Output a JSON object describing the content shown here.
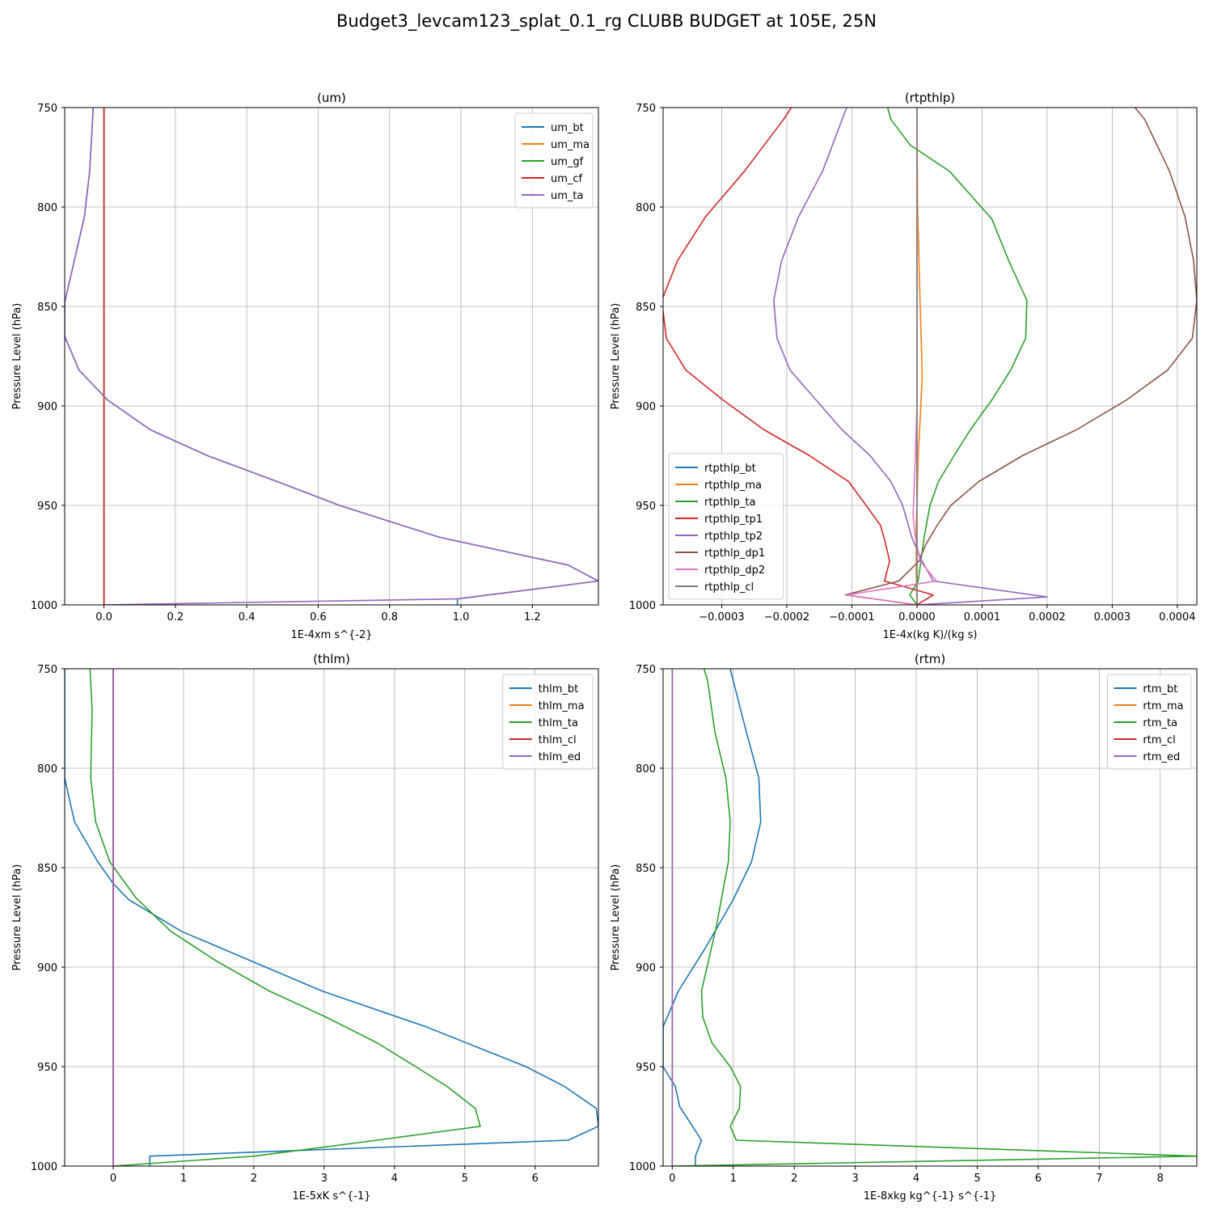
{
  "suptitle": "Budget3_levcam123_splat_0.1_rg CLUBB BUDGET at 105E, 25N",
  "chart_data": [
    {
      "type": "line",
      "title": "(um)",
      "xlabel": "1E-4xm s^{-2}",
      "ylabel": "Pressure Level (hPa)",
      "xlim": [
        -0.11,
        1.385
      ],
      "ylim": [
        1000,
        750
      ],
      "xticks": [
        0.0,
        0.2,
        0.4,
        0.6,
        0.8,
        1.0,
        1.2
      ],
      "xtick_labels": [
        "0.0",
        "0.2",
        "0.4",
        "0.6",
        "0.8",
        "1.0",
        "1.2"
      ],
      "yticks": [
        750,
        800,
        850,
        900,
        950,
        1000
      ],
      "ytick_labels": [
        "750",
        "800",
        "850",
        "900",
        "950",
        "1000"
      ],
      "legend_loc": "upper right",
      "series": [
        {
          "name": "um_bt",
          "color": "#1f77b4",
          "x": [
            -0.03,
            -0.04,
            -0.055,
            -0.11,
            -0.11,
            -0.07,
            0.01,
            0.13,
            0.29,
            0.47,
            0.66,
            0.94,
            1.3,
            1.385,
            0.99,
            0.99
          ],
          "y": [
            750,
            782,
            805,
            848,
            865,
            882,
            897,
            912,
            925,
            937,
            950,
            966,
            980,
            988,
            997,
            1000
          ]
        },
        {
          "name": "um_ma",
          "color": "#ff7f0e",
          "x": [
            0,
            0
          ],
          "y": [
            750,
            1000
          ]
        },
        {
          "name": "um_gf",
          "color": "#2ca02c",
          "x": [
            0,
            0
          ],
          "y": [
            750,
            1000
          ]
        },
        {
          "name": "um_cf",
          "color": "#d62728",
          "x": [
            0,
            0
          ],
          "y": [
            750,
            1000
          ]
        },
        {
          "name": "um_ta",
          "color": "#9467bd",
          "x": [
            -0.03,
            -0.04,
            -0.055,
            -0.11,
            -0.11,
            -0.07,
            0.01,
            0.13,
            0.29,
            0.47,
            0.66,
            0.94,
            1.3,
            1.385,
            0.99,
            0.0
          ],
          "y": [
            750,
            782,
            805,
            848,
            865,
            882,
            897,
            912,
            925,
            937,
            950,
            966,
            980,
            988,
            997,
            1000
          ]
        }
      ]
    },
    {
      "type": "line",
      "title": "(rtpthlp)",
      "xlabel": "1E-4x(kg K)/(kg s)",
      "ylabel": "Pressure Level (hPa)",
      "xlim": [
        -0.00039,
        0.00043
      ],
      "ylim": [
        1000,
        750
      ],
      "xticks": [
        -0.0003,
        -0.0002,
        -0.0001,
        0.0,
        0.0001,
        0.0002,
        0.0003,
        0.0004
      ],
      "xtick_labels": [
        "−0.0003",
        "−0.0002",
        "−0.0001",
        "0.0000",
        "0.0001",
        "0.0002",
        "0.0003",
        "0.0004"
      ],
      "yticks": [
        750,
        800,
        850,
        900,
        950,
        1000
      ],
      "ytick_labels": [
        "750",
        "800",
        "850",
        "900",
        "950",
        "1000"
      ],
      "legend_loc": "lower left",
      "series": [
        {
          "name": "rtpthlp_bt",
          "color": "#1f77b4",
          "x": [
            0.0,
            0.0
          ],
          "y": [
            750,
            1000
          ]
        },
        {
          "name": "rtpthlp_ma",
          "color": "#ff7f0e",
          "x": [
            0.0,
            1e-06,
            5e-06,
            7e-06,
            8e-06,
            6e-06,
            2e-06,
            -1e-06,
            -1e-06,
            0.0
          ],
          "y": [
            750,
            800,
            850,
            870,
            885,
            900,
            925,
            960,
            985,
            1000
          ]
        },
        {
          "name": "rtpthlp_ta",
          "color": "#2ca02c",
          "x": [
            -4.5e-05,
            -4e-05,
            -1e-05,
            5e-05,
            0.000115,
            0.000141,
            0.000169,
            0.000167,
            0.000144,
            0.000115,
            8.2e-05,
            5.7e-05,
            3.3e-05,
            2e-05,
            1.1e-05,
            6e-06,
            2e-06,
            -1.1e-05,
            0.0
          ],
          "y": [
            750,
            756,
            769,
            782,
            806,
            827,
            847,
            866,
            882,
            897,
            912,
            925,
            938,
            950,
            966,
            978,
            988,
            995,
            1000
          ]
        },
        {
          "name": "rtpthlp_tp1",
          "color": "#d62728",
          "x": [
            -0.000193,
            -0.000205,
            -0.000265,
            -0.000325,
            -0.000368,
            -0.000392,
            -0.000385,
            -0.000355,
            -0.000298,
            -0.000235,
            -0.000165,
            -0.000105,
            -7.8e-05,
            -5.6e-05,
            -5e-05,
            -4.2e-05,
            -5e-05,
            2.5e-05,
            0.0
          ],
          "y": [
            750,
            756,
            782,
            805,
            827,
            847,
            866,
            882,
            897,
            912,
            925,
            938,
            950,
            960,
            967,
            978,
            988,
            995,
            1000
          ]
        },
        {
          "name": "rtpthlp_tp2",
          "color": "#9467bd",
          "x": [
            -0.000108,
            -0.000115,
            -0.000145,
            -0.000182,
            -0.000208,
            -0.00022,
            -0.000215,
            -0.000195,
            -0.000155,
            -0.000115,
            -7.2e-05,
            -4e-05,
            -2.2e-05,
            -8e-06,
            8e-06,
            2.5e-05,
            0.0002,
            0.0
          ],
          "y": [
            750,
            756,
            782,
            805,
            827,
            847,
            866,
            882,
            897,
            912,
            925,
            938,
            950,
            966,
            978,
            988,
            996,
            1000
          ]
        },
        {
          "name": "rtpthlp_dp1",
          "color": "#8c564b",
          "x": [
            0.000335,
            0.00035,
            0.000388,
            0.000412,
            0.000425,
            0.00043,
            0.000423,
            0.000385,
            0.000322,
            0.000245,
            0.000162,
            9.5e-05,
            5.2e-05,
            3.1e-05,
            1.3e-05,
            3e-06,
            -2.8e-05,
            -0.00011,
            0.0
          ],
          "y": [
            750,
            756,
            782,
            805,
            827,
            847,
            866,
            882,
            897,
            912,
            925,
            938,
            950,
            960,
            970,
            978,
            988,
            995,
            1000
          ]
        },
        {
          "name": "rtpthlp_dp2",
          "color": "#e377c2",
          "x": [
            0.0,
            0.0,
            0.0,
            -4e-06,
            -6e-06,
            -3e-06,
            5e-06,
            3e-05,
            -0.000108,
            0.0
          ],
          "y": [
            750,
            850,
            900,
            940,
            955,
            965,
            978,
            988,
            995,
            1000
          ]
        },
        {
          "name": "rtpthlp_cl",
          "color": "#7f7f7f",
          "x": [
            0.0,
            0.0
          ],
          "y": [
            750,
            1000
          ]
        }
      ]
    },
    {
      "type": "line",
      "title": "(thlm)",
      "xlabel": "1E-5xK s^{-1}",
      "ylabel": "Pressure Level (hPa)",
      "xlim": [
        -0.69,
        6.9
      ],
      "ylim": [
        1000,
        750
      ],
      "xticks": [
        0,
        1,
        2,
        3,
        4,
        5,
        6
      ],
      "xtick_labels": [
        "0",
        "1",
        "2",
        "3",
        "4",
        "5",
        "6"
      ],
      "yticks": [
        750,
        800,
        850,
        900,
        950,
        1000
      ],
      "ytick_labels": [
        "750",
        "800",
        "850",
        "900",
        "950",
        "1000"
      ],
      "legend_loc": "upper right",
      "series": [
        {
          "name": "thlm_bt",
          "color": "#1f77b4",
          "x": [
            -0.69,
            -0.69,
            -0.69,
            -0.55,
            -0.22,
            0.0,
            0.22,
            0.97,
            1.97,
            2.97,
            4.45,
            5.87,
            6.42,
            6.87,
            6.9,
            6.47,
            0.52,
            0.52
          ],
          "y": [
            750,
            780,
            805,
            827,
            847,
            858,
            866,
            882,
            897,
            912,
            930,
            950,
            960,
            971,
            980,
            987,
            995,
            1000
          ]
        },
        {
          "name": "thlm_ma",
          "color": "#ff7f0e",
          "x": [
            0.0,
            0.0
          ],
          "y": [
            750,
            1000
          ]
        },
        {
          "name": "thlm_ta",
          "color": "#2ca02c",
          "x": [
            -0.33,
            -0.3,
            -0.32,
            -0.25,
            -0.05,
            0.32,
            0.82,
            1.47,
            2.22,
            3.02,
            3.75,
            4.3,
            4.75,
            5.15,
            5.22,
            3.75,
            2.0,
            0.0
          ],
          "y": [
            750,
            770,
            805,
            827,
            847,
            865,
            882,
            897,
            912,
            925,
            938,
            950,
            960,
            971,
            980,
            987,
            995,
            1000
          ]
        },
        {
          "name": "thlm_cl",
          "color": "#d62728",
          "x": [
            0.0,
            0.0
          ],
          "y": [
            750,
            1000
          ]
        },
        {
          "name": "thlm_ed",
          "color": "#9467bd",
          "x": [
            0.0,
            0.0
          ],
          "y": [
            750,
            1000
          ]
        }
      ]
    },
    {
      "type": "line",
      "title": "(rtm)",
      "xlabel": "1E-8xkg kg^{-1} s^{-1}",
      "ylabel": "Pressure Level (hPa)",
      "xlim": [
        -0.15,
        8.6
      ],
      "ylim": [
        1000,
        750
      ],
      "xticks": [
        0,
        1,
        2,
        3,
        4,
        5,
        6,
        7,
        8
      ],
      "xtick_labels": [
        "0",
        "1",
        "2",
        "3",
        "4",
        "5",
        "6",
        "7",
        "8"
      ],
      "yticks": [
        750,
        800,
        850,
        900,
        950,
        1000
      ],
      "ytick_labels": [
        "750",
        "800",
        "850",
        "900",
        "950",
        "1000"
      ],
      "legend_loc": "upper right",
      "series": [
        {
          "name": "rtm_bt",
          "color": "#1f77b4",
          "x": [
            0.95,
            1.2,
            1.42,
            1.45,
            1.3,
            1.0,
            0.55,
            0.1,
            -0.15,
            -0.15,
            0.05,
            0.12,
            0.48,
            0.38,
            0.38
          ],
          "y": [
            750,
            780,
            805,
            827,
            847,
            866,
            890,
            912,
            930,
            950,
            960,
            970,
            987,
            995,
            1000
          ]
        },
        {
          "name": "rtm_ma",
          "color": "#ff7f0e",
          "x": [
            0.0,
            0.0
          ],
          "y": [
            750,
            1000
          ]
        },
        {
          "name": "rtm_ta",
          "color": "#2ca02c",
          "x": [
            0.52,
            0.58,
            0.7,
            0.88,
            0.95,
            0.92,
            0.72,
            0.48,
            0.5,
            0.65,
            0.95,
            1.12,
            1.1,
            0.95,
            1.05,
            8.6,
            0.0
          ],
          "y": [
            750,
            756,
            782,
            805,
            827,
            847,
            880,
            912,
            925,
            938,
            950,
            960,
            971,
            980,
            987,
            995,
            1000
          ]
        },
        {
          "name": "rtm_cl",
          "color": "#d62728",
          "x": [
            0.0,
            0.0
          ],
          "y": [
            750,
            1000
          ]
        },
        {
          "name": "rtm_ed",
          "color": "#9467bd",
          "x": [
            0.0,
            0.0
          ],
          "y": [
            750,
            1000
          ]
        }
      ]
    }
  ]
}
